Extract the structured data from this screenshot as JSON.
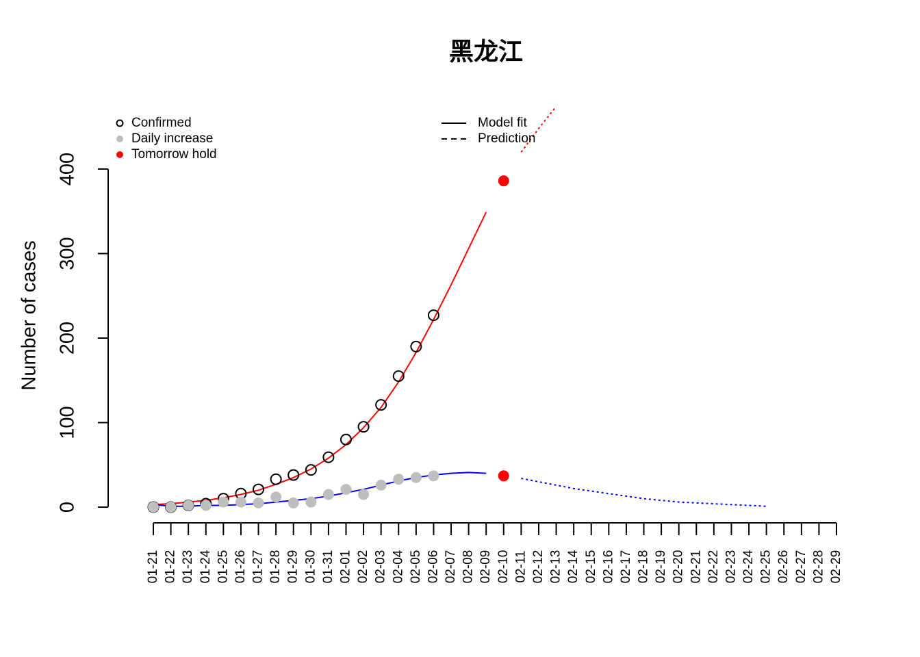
{
  "chart_data": {
    "type": "scatter",
    "title": "黑龙江",
    "y_label": "Number of cases",
    "categories": [
      "01-21",
      "01-22",
      "01-23",
      "01-24",
      "01-25",
      "01-26",
      "01-27",
      "01-28",
      "01-29",
      "01-30",
      "01-31",
      "02-01",
      "02-02",
      "02-03",
      "02-04",
      "02-05",
      "02-06",
      "02-07",
      "02-08",
      "02-09",
      "02-10",
      "02-11",
      "02-12",
      "02-13",
      "02-14",
      "02-15",
      "02-16",
      "02-17",
      "02-18",
      "02-19",
      "02-20",
      "02-21",
      "02-22",
      "02-23",
      "02-24",
      "02-25",
      "02-26",
      "02-27",
      "02-28",
      "02-29"
    ],
    "ylim": [
      0,
      400
    ],
    "yticks": [
      0,
      100,
      200,
      300,
      400
    ],
    "series": [
      {
        "name": "Confirmed",
        "color": "#000000",
        "marker": "open",
        "values": [
          0,
          0,
          2,
          4,
          10,
          16,
          21,
          33,
          38,
          44,
          59,
          80,
          95,
          121,
          155,
          190,
          227,
          null,
          null,
          null,
          null,
          null,
          null,
          null,
          null,
          null,
          null,
          null,
          null,
          null,
          null,
          null,
          null,
          null,
          null,
          null,
          null,
          null,
          null,
          null
        ]
      },
      {
        "name": "Daily increase",
        "color": "#bebebe",
        "marker": "filled",
        "values": [
          0,
          0,
          2,
          2,
          6,
          6,
          5,
          12,
          5,
          6,
          15,
          21,
          15,
          26,
          33,
          35,
          37,
          null,
          null,
          null,
          null,
          null,
          null,
          null,
          null,
          null,
          null,
          null,
          null,
          null,
          null,
          null,
          null,
          null,
          null,
          null,
          null,
          null,
          null,
          null
        ]
      },
      {
        "name": "Tomorrow hold",
        "color": "#ff0000",
        "marker": "filled",
        "x": [
          "02-10",
          "02-10"
        ],
        "values": [
          386,
          37
        ]
      }
    ],
    "curves": [
      {
        "color": "#ff0000",
        "fit": [
          3,
          4,
          6,
          8,
          11,
          15,
          20,
          27,
          35,
          45,
          58,
          74,
          94,
          118,
          148,
          183,
          222,
          263,
          306,
          349,
          null,
          null,
          null,
          null,
          null,
          null,
          null,
          null,
          null,
          null,
          null,
          null,
          null,
          null,
          null,
          null,
          null,
          null,
          null,
          null
        ],
        "prediction": [
          null,
          null,
          null,
          null,
          null,
          null,
          null,
          null,
          null,
          null,
          null,
          null,
          null,
          null,
          null,
          null,
          null,
          null,
          null,
          null,
          null,
          420,
          448,
          474,
          null,
          null,
          null,
          null,
          null,
          null,
          null,
          null,
          null,
          null,
          null,
          null,
          null,
          null,
          null,
          null
        ]
      },
      {
        "color": "#0000ff",
        "fit": [
          3,
          1,
          1,
          2,
          2,
          3,
          4,
          6,
          8,
          10,
          13,
          17,
          21,
          26,
          31,
          35,
          38,
          40,
          41,
          40,
          null,
          null,
          null,
          null,
          null,
          null,
          null,
          null,
          null,
          null,
          null,
          null,
          null,
          null,
          null,
          null,
          null,
          null,
          null,
          null
        ],
        "prediction": [
          null,
          null,
          null,
          null,
          null,
          null,
          null,
          null,
          null,
          null,
          null,
          null,
          null,
          null,
          null,
          null,
          null,
          null,
          null,
          null,
          null,
          34,
          30,
          26,
          22,
          19,
          16,
          13,
          10,
          8,
          6,
          5,
          4,
          3,
          2,
          1,
          null,
          null,
          null,
          null
        ]
      }
    ],
    "line_legend": [
      {
        "name": "Model fit",
        "dash": "solid"
      },
      {
        "name": "Prediction",
        "dash": "dashed"
      }
    ]
  }
}
